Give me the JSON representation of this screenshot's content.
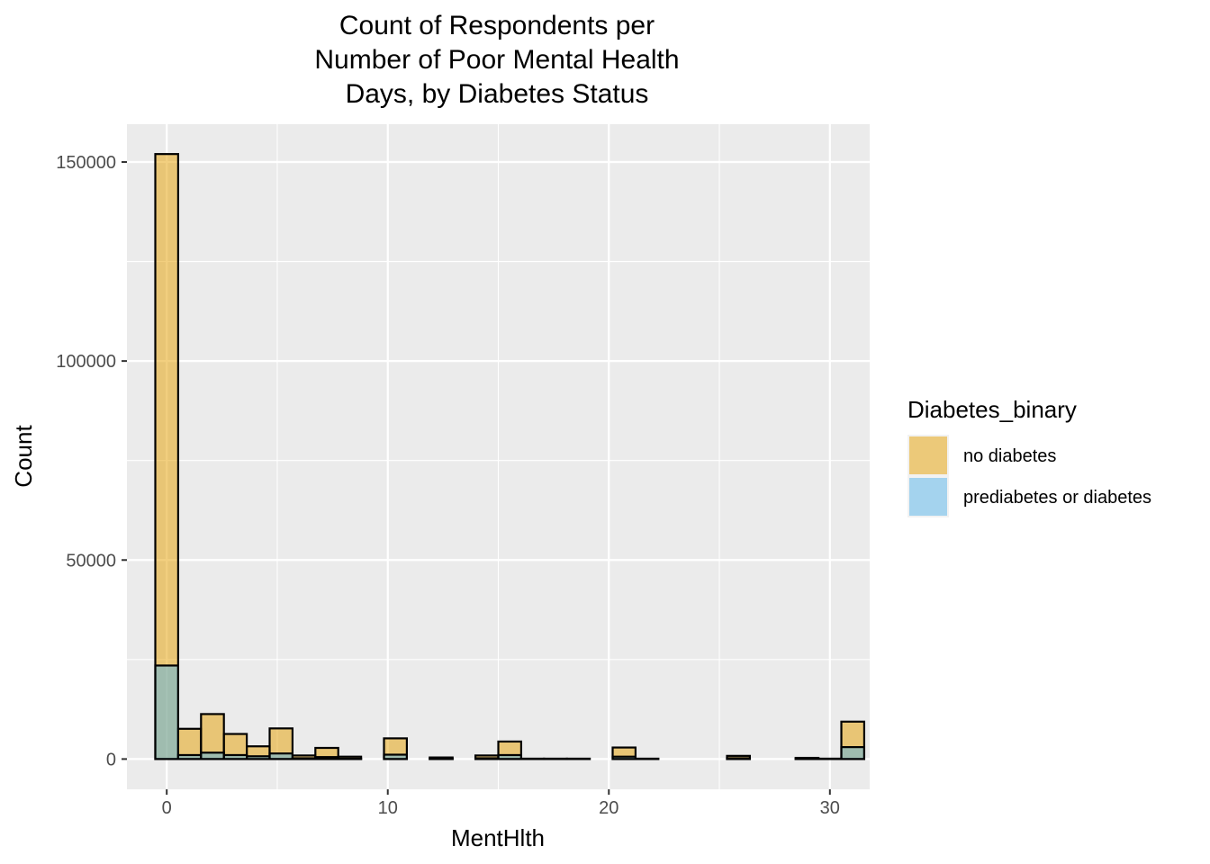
{
  "chart_data": {
    "type": "bar",
    "subtype": "overlapping-histogram",
    "title_lines": [
      "Count of Respondents per",
      "Number of Poor Mental Health",
      "Days, by Diabetes Status"
    ],
    "xlabel": "MentHlth",
    "ylabel": "Count",
    "xlim": [
      -1.8,
      31.8
    ],
    "ylim": [
      -7600,
      159500
    ],
    "x_ticks": [
      0,
      10,
      20,
      30
    ],
    "x_tick_labels": [
      "0",
      "10",
      "20",
      "30"
    ],
    "y_ticks": [
      0,
      50000,
      100000,
      150000
    ],
    "y_tick_labels": [
      "0",
      "50000",
      "100000",
      "150000"
    ],
    "grid": true,
    "bin_width": 1.0345,
    "bin_start": -0.5172,
    "legend": {
      "title": "Diabetes_binary",
      "position": "right",
      "entries": [
        "no diabetes",
        "prediabetes or diabetes"
      ]
    },
    "series": [
      {
        "name": "no diabetes",
        "color": "#E69F00",
        "values": [
          152000,
          7600,
          11300,
          6300,
          3200,
          7700,
          900,
          2800,
          600,
          0,
          5200,
          0,
          400,
          0,
          900,
          4400,
          100,
          100,
          100,
          0,
          2900,
          100,
          0,
          0,
          0,
          800,
          0,
          0,
          300,
          100,
          9400
        ]
      },
      {
        "name": "prediabetes or diabetes",
        "color": "#56B4E9",
        "values": [
          23500,
          1000,
          1600,
          1000,
          700,
          1400,
          200,
          500,
          100,
          0,
          1100,
          0,
          100,
          0,
          200,
          1000,
          0,
          0,
          0,
          0,
          600,
          0,
          0,
          0,
          0,
          200,
          0,
          0,
          100,
          0,
          3000
        ]
      }
    ]
  }
}
